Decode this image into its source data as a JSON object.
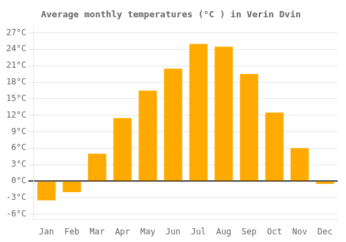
{
  "chart_data": {
    "type": "bar",
    "title": "Average monthly temperatures (°C ) in Verin Dvin",
    "categories": [
      "Jan",
      "Feb",
      "Mar",
      "Apr",
      "May",
      "Jun",
      "Jul",
      "Aug",
      "Sep",
      "Oct",
      "Nov",
      "Dec"
    ],
    "values": [
      -3.5,
      -2.0,
      5.0,
      11.5,
      16.5,
      20.5,
      25.0,
      24.5,
      19.5,
      12.5,
      6.0,
      -0.5
    ],
    "color": "#FFAA00",
    "ylim": [
      -7,
      28
    ],
    "yticks": [
      {
        "value": -6,
        "label": "-6°C"
      },
      {
        "value": -3,
        "label": "-3°C"
      },
      {
        "value": 0,
        "label": "0°C"
      },
      {
        "value": 3,
        "label": "3°C"
      },
      {
        "value": 6,
        "label": "6°C"
      },
      {
        "value": 9,
        "label": "9°C"
      },
      {
        "value": 12,
        "label": "12°C"
      },
      {
        "value": 15,
        "label": "15°C"
      },
      {
        "value": 18,
        "label": "18°C"
      },
      {
        "value": 21,
        "label": "21°C"
      },
      {
        "value": 24,
        "label": "24°C"
      },
      {
        "value": 27,
        "label": "27°C"
      }
    ],
    "grid": true
  }
}
